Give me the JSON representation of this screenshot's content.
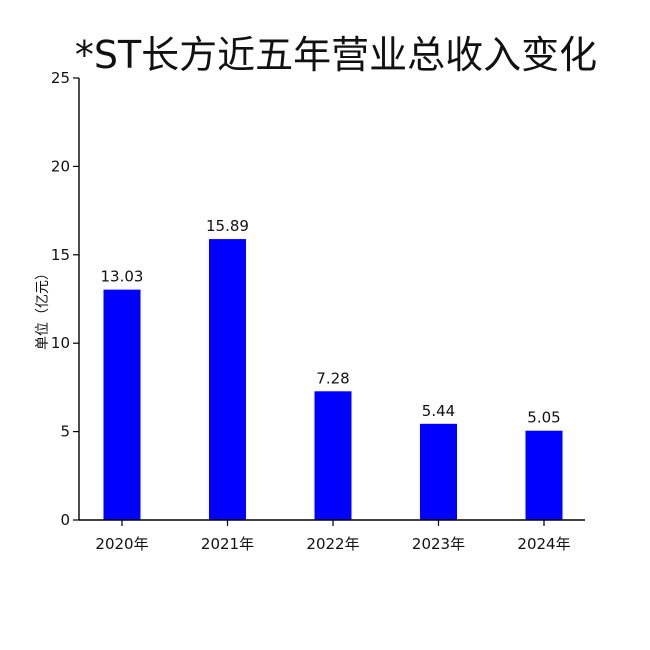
{
  "chart_data": {
    "type": "bar",
    "title": "*ST长方近五年营业总收入变化",
    "xlabel": "",
    "ylabel": "单位（亿元）",
    "categories": [
      "2020年",
      "2021年",
      "2022年",
      "2023年",
      "2024年"
    ],
    "values": [
      13.03,
      15.89,
      7.28,
      5.44,
      5.05
    ],
    "data_labels": [
      "13.03",
      "15.89",
      "7.28",
      "5.44",
      "5.05"
    ],
    "ylim": [
      0,
      25
    ],
    "yticks": [
      0,
      5,
      10,
      15,
      20,
      25
    ],
    "bar_color": "#0000ff",
    "grid": false,
    "legend": "none"
  }
}
